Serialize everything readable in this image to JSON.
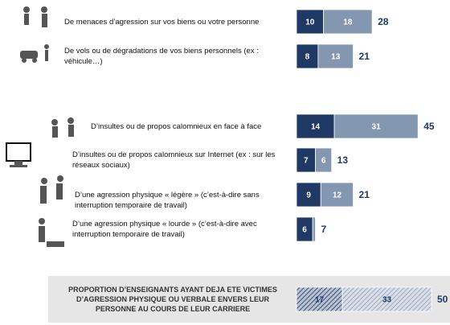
{
  "chart_data": {
    "type": "stacked-bar-horizontal",
    "categories": [
      "De menaces d’agression sur vos biens ou votre personne",
      "De vols ou de dégradations de vos biens personnels (ex : véhicule…)",
      "D’insultes ou de propos calomnieux en face à face",
      "D’insultes ou de propos calomnieux sur Internet (ex : sur les réseaux sociaux)",
      "D’une agression physique « légère » (c’est-à-dire sans interruption temporaire de travail)",
      "D’une agression physique « lourde » (c’est-à-dire avec interruption temporaire de travail)",
      "PROPORTION D’ENSEIGNANTS AYANT DEJA ETE VICTIMES D’AGRESSION PHYSIQUE OU VERBALE ENVERS LEUR PERSONNE AU COURS DE LEUR CARRIERE"
    ],
    "series": [
      {
        "color": "#1f3864",
        "values": [
          10,
          8,
          14,
          7,
          9,
          6,
          17
        ]
      },
      {
        "color": "#8497b0",
        "values": [
          18,
          13,
          31,
          6,
          12,
          1,
          33
        ]
      }
    ],
    "totals": [
      28,
      21,
      45,
      13,
      21,
      7,
      50
    ],
    "total_color": "#1f3864"
  }
}
